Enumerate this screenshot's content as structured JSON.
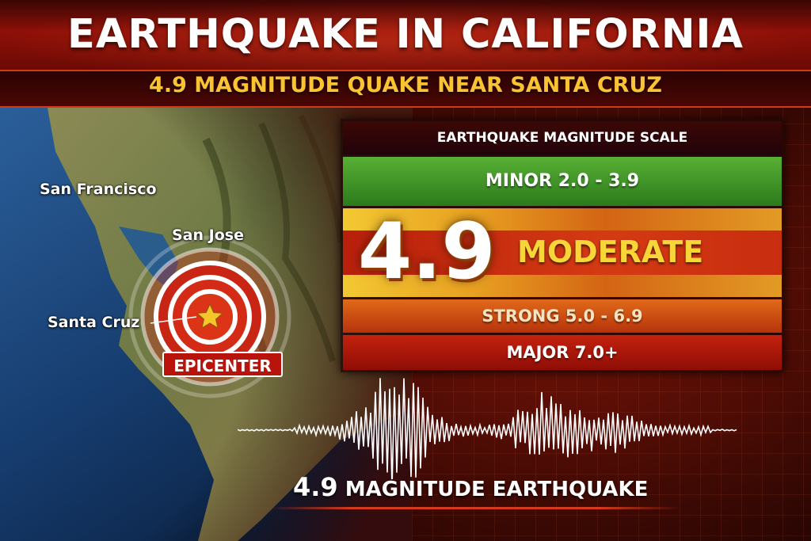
{
  "header": {
    "title": "EARTHQUAKE IN CALIFORNIA",
    "subtitle": "4.9 MAGNITUDE QUAKE NEAR SANTA CRUZ"
  },
  "map": {
    "cities": {
      "san_francisco": "San Francisco",
      "san_jose": "San Jose",
      "santa_cruz": "Santa Cruz"
    },
    "epicenter_label": "EPICENTER",
    "marker_icon": "star-icon"
  },
  "scale": {
    "title": "EARTHQUAKE MAGNITUDE SCALE",
    "minor": "MINOR 2.0 - 3.9",
    "current_value": "4.9",
    "current_level": "MODERATE",
    "strong": "STRONG 5.0 - 6.9",
    "major": "MAJOR 7.0+"
  },
  "footer": {
    "value": "4.9",
    "label": "MAGNITUDE EARTHQUAKE"
  },
  "colors": {
    "minor": "#3d9a28",
    "moderate": "#e8a021",
    "strong": "#d0561a",
    "major": "#b0170b",
    "accent": "#f9c332"
  }
}
